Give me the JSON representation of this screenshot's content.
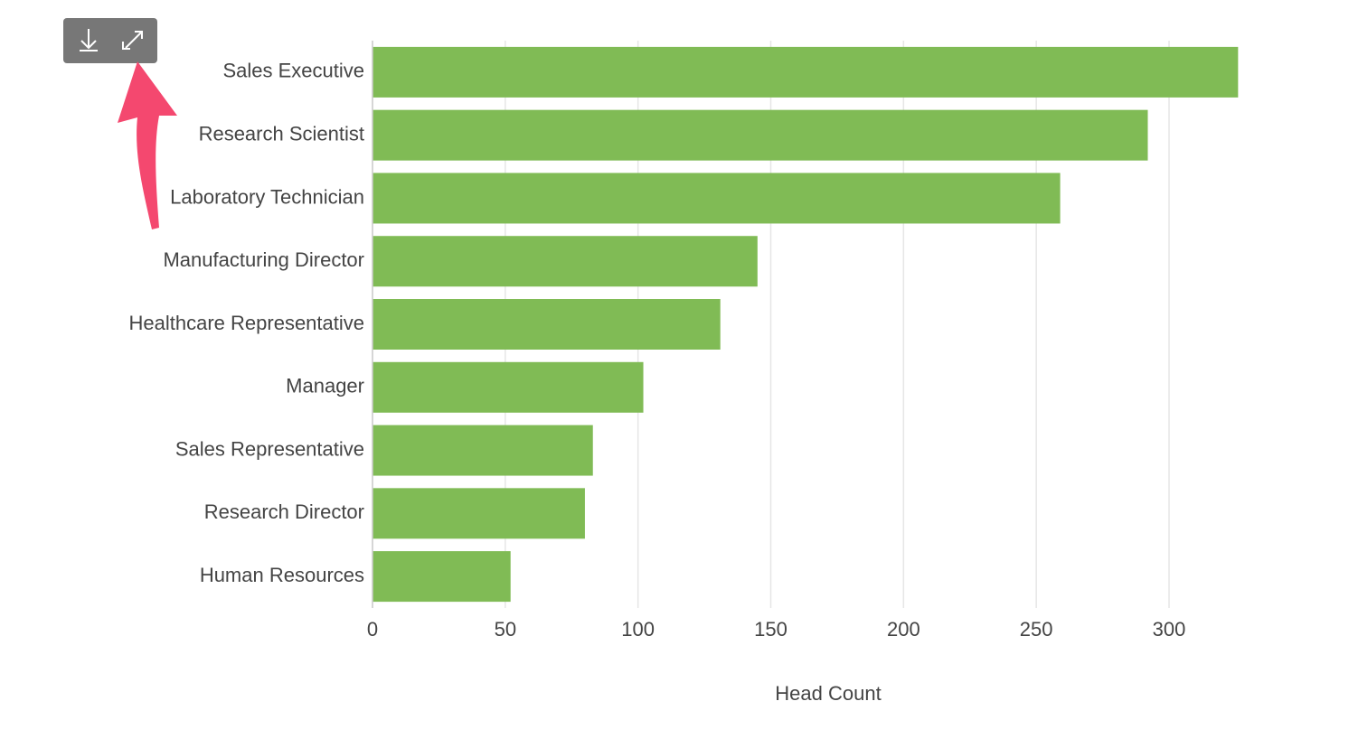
{
  "chart_data": {
    "type": "bar",
    "orientation": "horizontal",
    "x_label": "Head Count",
    "categories": [
      "Sales Executive",
      "Research Scientist",
      "Laboratory Technician",
      "Manufacturing Director",
      "Healthcare Representative",
      "Manager",
      "Sales Representative",
      "Research Director",
      "Human Resources"
    ],
    "values": [
      326,
      292,
      259,
      145,
      131,
      102,
      83,
      80,
      52
    ],
    "color": "#80bb55",
    "xlim": [
      0,
      330
    ],
    "xticks": [
      0,
      50,
      100,
      150,
      200,
      250,
      300
    ],
    "grid": true
  }
}
